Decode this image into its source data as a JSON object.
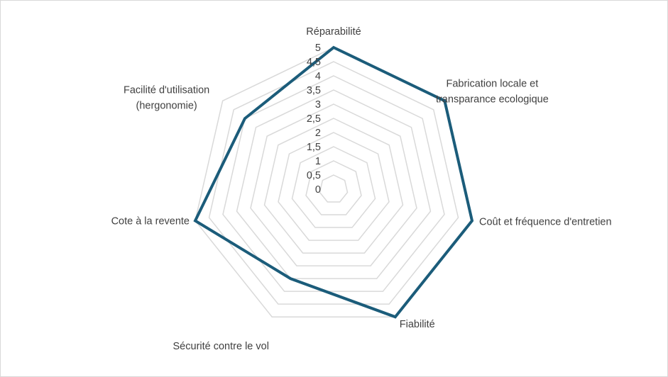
{
  "chart_data": {
    "type": "radar",
    "title": "",
    "categories": [
      [
        "Réparabilité"
      ],
      [
        "Fabrication locale et",
        "transparance ecologique"
      ],
      [
        "Coût et fréquence d'entretien"
      ],
      [
        "Fiabilité"
      ],
      [
        "Sécurité contre le vol"
      ],
      [
        "Cote à la revente"
      ],
      [
        "Facilité d'utilisation",
        "(hergonomie)"
      ]
    ],
    "series": [
      {
        "values": [
          5,
          5,
          5,
          5,
          3.5,
          5,
          4
        ]
      }
    ],
    "rlim": [
      0,
      5
    ],
    "ticks": [
      "0",
      "0,5",
      "1",
      "1,5",
      "2",
      "2,5",
      "3",
      "3,5",
      "4",
      "4,5",
      "5"
    ],
    "grid": true,
    "legend": "none",
    "colors": {
      "series": "#1b5c7a",
      "grid": "#d9d9d9",
      "text": "#404040"
    }
  }
}
